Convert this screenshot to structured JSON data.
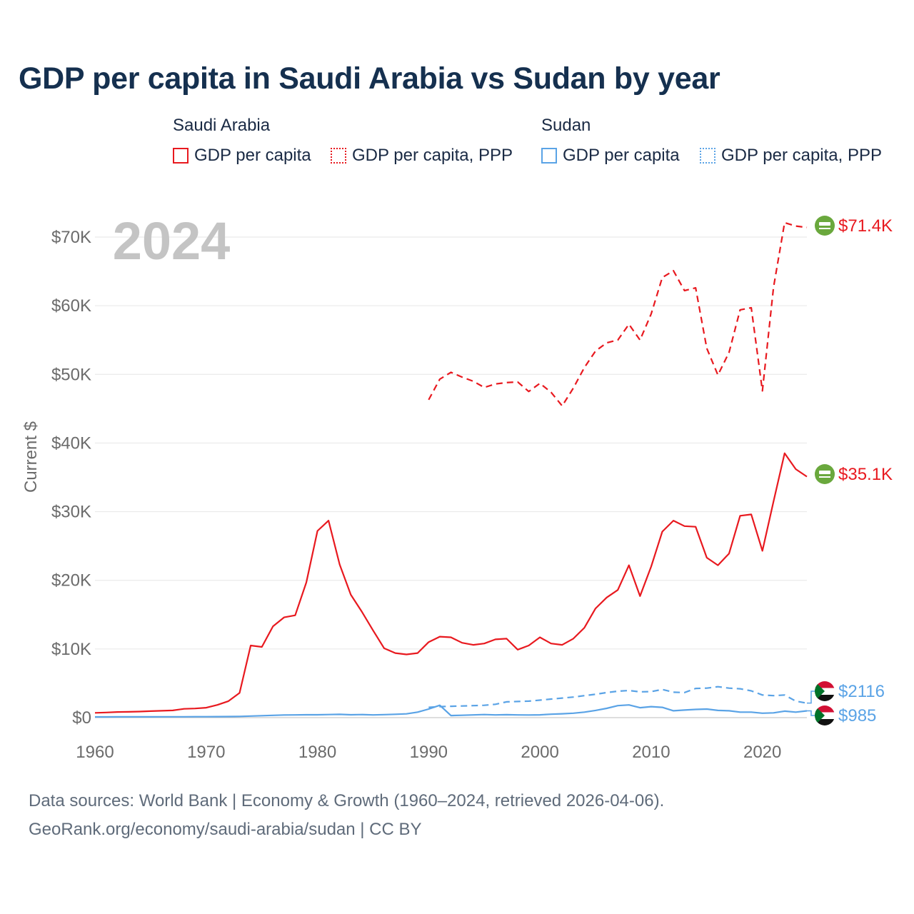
{
  "title": "GDP per capita in Saudi Arabia vs Sudan by year",
  "legend": {
    "groups": [
      {
        "country": "Saudi Arabia",
        "items": [
          "GDP per capita",
          "GDP per capita, PPP"
        ],
        "color": "#e8191f"
      },
      {
        "country": "Sudan",
        "items": [
          "GDP per capita",
          "GDP per capita, PPP"
        ],
        "color": "#5aa3e6"
      }
    ]
  },
  "footer": {
    "line1": "Data sources: World Bank | Economy & Growth (1960–2024, retrieved 2026-04-06).",
    "line2": "GeoRank.org/economy/saudi-arabia/sudan | CC BY"
  },
  "chart_data": {
    "type": "line",
    "title": "GDP per capita in Saudi Arabia vs Sudan by year",
    "ylabel": "Current $",
    "xlabel": "",
    "year_watermark": "2024",
    "xlim": [
      1960,
      2024
    ],
    "ylim": [
      0,
      70000
    ],
    "x_ticks": [
      1960,
      1970,
      1980,
      1990,
      2000,
      2010,
      2020
    ],
    "x_tick_labels": [
      "1960",
      "1970",
      "1980",
      "1990",
      "2000",
      "2010",
      "2020"
    ],
    "y_ticks": [
      0,
      10000,
      20000,
      30000,
      40000,
      50000,
      60000,
      70000
    ],
    "y_tick_labels": [
      "$0",
      "$10K",
      "$20K",
      "$30K",
      "$40K",
      "$50K",
      "$60K",
      "$70K"
    ],
    "series": [
      {
        "name": "Saudi Arabia GDP per capita",
        "color": "#e8191f",
        "dash": "solid",
        "end_label": "$35.1K",
        "icon": "saudi-flag-icon",
        "x": [
          1960,
          1961,
          1962,
          1963,
          1964,
          1965,
          1966,
          1967,
          1968,
          1969,
          1970,
          1971,
          1972,
          1973,
          1974,
          1975,
          1976,
          1977,
          1978,
          1979,
          1980,
          1981,
          1982,
          1983,
          1984,
          1985,
          1986,
          1987,
          1988,
          1989,
          1990,
          1991,
          1992,
          1993,
          1994,
          1995,
          1996,
          1997,
          1998,
          1999,
          2000,
          2001,
          2002,
          2003,
          2004,
          2005,
          2006,
          2007,
          2008,
          2009,
          2010,
          2011,
          2012,
          2013,
          2014,
          2015,
          2016,
          2017,
          2018,
          2019,
          2020,
          2021,
          2022,
          2023,
          2024
        ],
        "values": [
          700,
          750,
          820,
          840,
          880,
          950,
          1000,
          1050,
          1280,
          1330,
          1450,
          1850,
          2400,
          3600,
          10500,
          10300,
          13300,
          14600,
          14900,
          19700,
          27200,
          28700,
          22300,
          17900,
          15400,
          12700,
          10100,
          9400,
          9200,
          9400,
          11000,
          11800,
          11700,
          10900,
          10600,
          10800,
          11400,
          11500,
          9900,
          10500,
          11700,
          10800,
          10600,
          11500,
          13100,
          15900,
          17500,
          18600,
          22200,
          17700,
          22000,
          27100,
          28700,
          27900,
          27800,
          23300,
          22200,
          23900,
          29400,
          29600,
          24300,
          31500,
          38500,
          36200,
          35100
        ]
      },
      {
        "name": "Saudi Arabia GDP per capita, PPP",
        "color": "#e8191f",
        "dash": "dashed",
        "end_label": "$71.4K",
        "icon": "saudi-flag-icon",
        "x": [
          1990,
          1991,
          1992,
          1993,
          1994,
          1995,
          1996,
          1997,
          1998,
          1999,
          2000,
          2001,
          2002,
          2003,
          2004,
          2005,
          2006,
          2007,
          2008,
          2009,
          2010,
          2011,
          2012,
          2013,
          2014,
          2015,
          2016,
          2017,
          2018,
          2019,
          2020,
          2021,
          2022,
          2023,
          2024
        ],
        "values": [
          46300,
          49300,
          50300,
          49600,
          49000,
          48100,
          48600,
          48800,
          48900,
          47500,
          48700,
          47400,
          45400,
          48000,
          51000,
          53400,
          54600,
          55000,
          57300,
          55000,
          58800,
          64100,
          65100,
          62200,
          62600,
          53800,
          49900,
          53200,
          59400,
          59700,
          47600,
          62700,
          72100,
          71600,
          71400
        ]
      },
      {
        "name": "Sudan GDP per capita",
        "color": "#5aa3e6",
        "dash": "solid",
        "end_label": "$985",
        "icon": "sudan-flag-icon",
        "x": [
          1960,
          1961,
          1962,
          1963,
          1964,
          1965,
          1966,
          1967,
          1968,
          1969,
          1970,
          1971,
          1972,
          1973,
          1974,
          1975,
          1976,
          1977,
          1978,
          1979,
          1980,
          1981,
          1982,
          1983,
          1984,
          1985,
          1986,
          1987,
          1988,
          1989,
          1990,
          1991,
          1992,
          1993,
          1994,
          1995,
          1996,
          1997,
          1998,
          1999,
          2000,
          2001,
          2002,
          2003,
          2004,
          2005,
          2006,
          2007,
          2008,
          2009,
          2010,
          2011,
          2012,
          2013,
          2014,
          2015,
          2016,
          2017,
          2018,
          2019,
          2020,
          2021,
          2022,
          2023,
          2024
        ],
        "values": [
          100,
          105,
          110,
          112,
          115,
          118,
          120,
          122,
          130,
          135,
          140,
          150,
          160,
          180,
          230,
          280,
          330,
          380,
          400,
          420,
          420,
          450,
          480,
          420,
          450,
          400,
          440,
          490,
          550,
          800,
          1250,
          1800,
          300,
          340,
          400,
          450,
          400,
          430,
          400,
          380,
          410,
          500,
          560,
          650,
          800,
          1050,
          1350,
          1750,
          1850,
          1450,
          1600,
          1500,
          1000,
          1100,
          1200,
          1250,
          1050,
          1000,
          800,
          800,
          650,
          700,
          950,
          800,
          985
        ]
      },
      {
        "name": "Sudan GDP per capita, PPP",
        "color": "#5aa3e6",
        "dash": "dashed",
        "end_label": "$2116",
        "icon": "sudan-flag-icon",
        "x": [
          1990,
          1991,
          1992,
          1993,
          1994,
          1995,
          1996,
          1997,
          1998,
          1999,
          2000,
          2001,
          2002,
          2003,
          2004,
          2005,
          2006,
          2007,
          2008,
          2009,
          2010,
          2011,
          2012,
          2013,
          2014,
          2015,
          2016,
          2017,
          2018,
          2019,
          2020,
          2021,
          2022,
          2023,
          2024
        ],
        "values": [
          1500,
          1600,
          1650,
          1700,
          1750,
          1800,
          1950,
          2300,
          2350,
          2400,
          2550,
          2700,
          2850,
          3000,
          3200,
          3400,
          3650,
          3850,
          3950,
          3750,
          3800,
          4100,
          3700,
          3650,
          4250,
          4300,
          4500,
          4300,
          4200,
          3900,
          3300,
          3200,
          3300,
          2400,
          2116
        ]
      }
    ]
  }
}
